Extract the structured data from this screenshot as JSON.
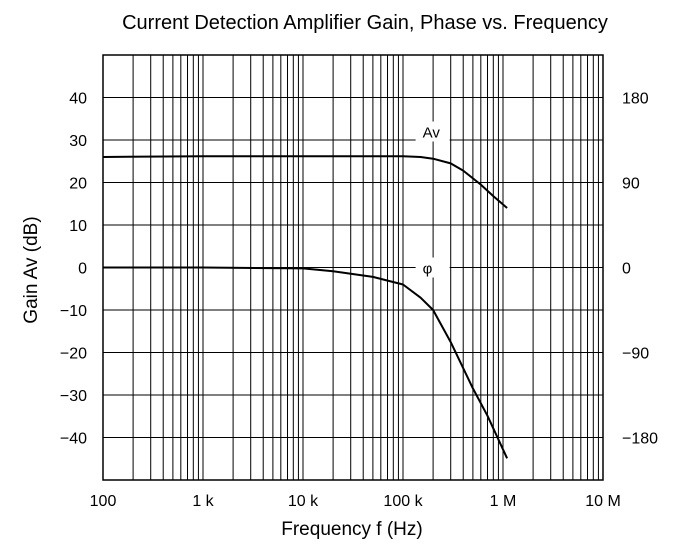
{
  "chart_data": {
    "type": "line",
    "title": "Current Detection Amplifier Gain, Phase vs. Frequency",
    "xlabel": "Frequency f (Hz)",
    "ylabel": "Gain Av (dB)",
    "y2label": "",
    "x_scale": "log",
    "xlim": [
      100,
      10000000
    ],
    "ylim": [
      -50,
      50
    ],
    "y2lim": [
      -225,
      225
    ],
    "grid": true,
    "x_ticks": [
      {
        "value": 100,
        "label": "100"
      },
      {
        "value": 1000,
        "label": "1 k"
      },
      {
        "value": 10000,
        "label": "10 k"
      },
      {
        "value": 100000,
        "label": "100 k"
      },
      {
        "value": 1000000,
        "label": "1 M"
      },
      {
        "value": 10000000,
        "label": "10 M"
      }
    ],
    "y_ticks": [
      {
        "value": 40,
        "label": "40"
      },
      {
        "value": 30,
        "label": "30"
      },
      {
        "value": 20,
        "label": "20"
      },
      {
        "value": 10,
        "label": "10"
      },
      {
        "value": 0,
        "label": "0"
      },
      {
        "value": -10,
        "label": "−10"
      },
      {
        "value": -20,
        "label": "−20"
      },
      {
        "value": -30,
        "label": "−30"
      },
      {
        "value": -40,
        "label": "−40"
      }
    ],
    "y2_ticks": [
      {
        "value": 180,
        "label": "180"
      },
      {
        "value": 90,
        "label": "90"
      },
      {
        "value": 0,
        "label": "0"
      },
      {
        "value": -90,
        "label": "−90"
      },
      {
        "value": -180,
        "label": "−180"
      }
    ],
    "series": [
      {
        "name": "Av",
        "axis": "left",
        "x": [
          100,
          1000,
          10000,
          100000,
          150000,
          200000,
          300000,
          400000,
          600000,
          800000,
          1100000
        ],
        "y": [
          26,
          26.2,
          26.2,
          26.2,
          26.0,
          25.6,
          24.5,
          22.8,
          19.5,
          16.8,
          14
        ]
      },
      {
        "name": "φ",
        "axis": "right",
        "x": [
          100,
          1000,
          10000,
          20000,
          50000,
          100000,
          150000,
          200000,
          300000,
          500000,
          700000,
          1100000
        ],
        "y": [
          0,
          0,
          -1,
          -4,
          -10,
          -18,
          -32,
          -45,
          -79,
          -128,
          -157,
          -202
        ]
      }
    ],
    "series_labels": [
      {
        "text": "Av",
        "x": 140000,
        "y": 32,
        "axis": "left"
      },
      {
        "text": "φ",
        "x": 140000,
        "y": 0,
        "axis": "right"
      }
    ]
  }
}
